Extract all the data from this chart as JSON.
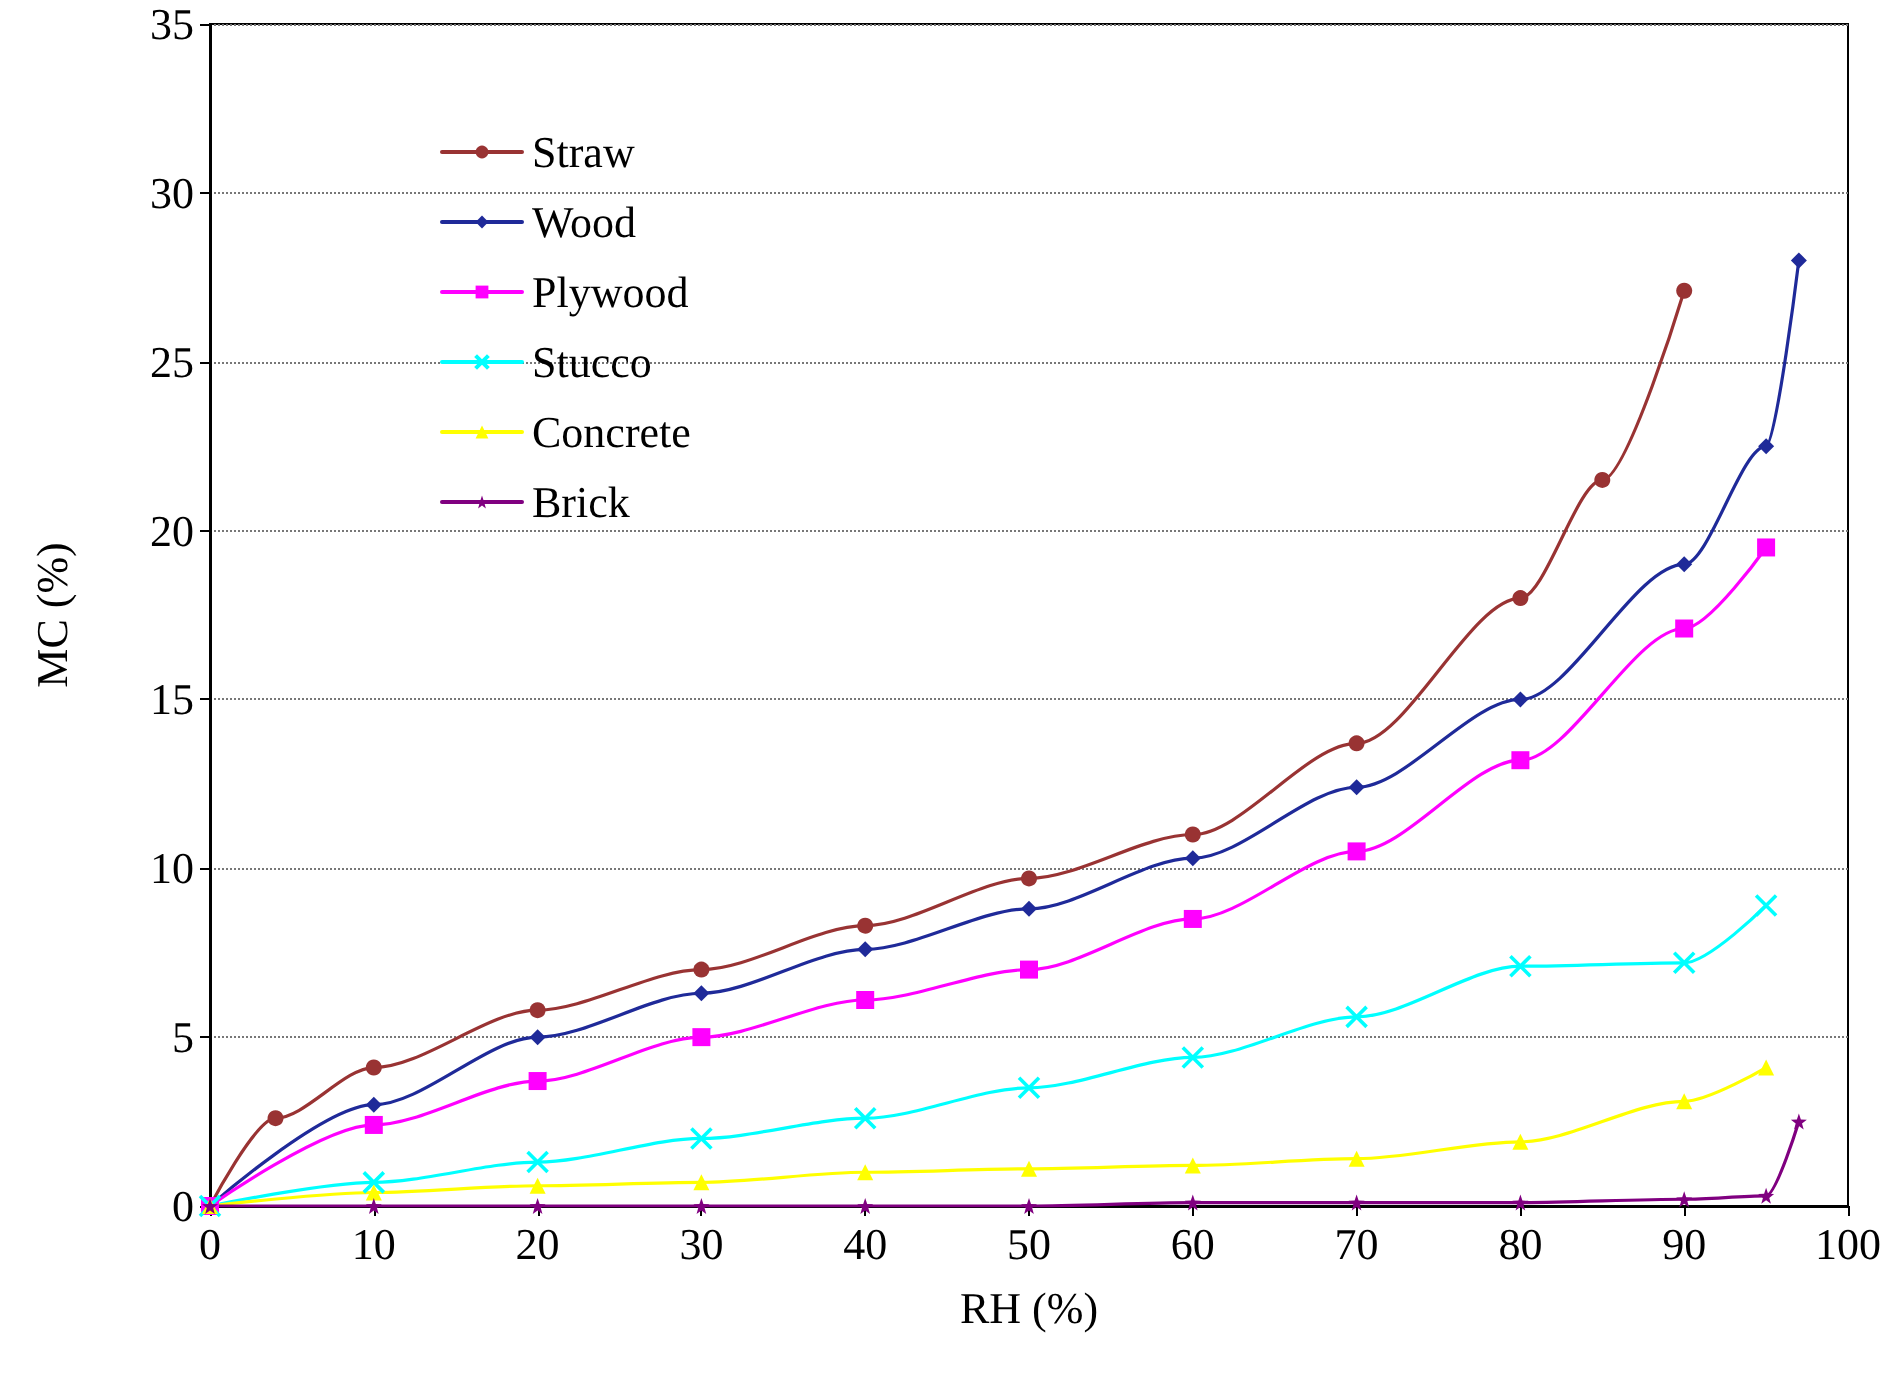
{
  "chart_data": {
    "type": "line",
    "xlabel": "RH (%)",
    "ylabel": "MC (%)",
    "xlim": [
      0,
      100
    ],
    "xticks": [
      0,
      10,
      20,
      30,
      40,
      50,
      60,
      70,
      80,
      90,
      100
    ],
    "ylim": [
      0,
      35
    ],
    "yticks": [
      0,
      5,
      10,
      15,
      20,
      25,
      30,
      35
    ],
    "grid": "y",
    "legend": "top left",
    "line_style": "solid",
    "series": [
      {
        "name": "Straw",
        "color": "#993333",
        "marker": "circle",
        "x": [
          0,
          4,
          10,
          20,
          30,
          40,
          50,
          60,
          70,
          80,
          85,
          90
        ],
        "values": [
          0,
          2.6,
          4.1,
          5.8,
          7.0,
          8.3,
          9.7,
          11.0,
          13.7,
          18.0,
          21.5,
          27.1
        ]
      },
      {
        "name": "Wood",
        "color": "#1f2a99",
        "marker": "diamond",
        "x": [
          0,
          10,
          20,
          30,
          40,
          50,
          60,
          70,
          80,
          90,
          95,
          97
        ],
        "values": [
          0,
          3.0,
          5.0,
          6.3,
          7.6,
          8.8,
          10.3,
          12.4,
          15.0,
          19.0,
          22.5,
          28.0
        ]
      },
      {
        "name": "Plywood",
        "color": "#ff00ff",
        "marker": "square",
        "x": [
          0,
          10,
          20,
          30,
          40,
          50,
          60,
          70,
          80,
          90,
          95
        ],
        "values": [
          0,
          2.4,
          3.7,
          5.0,
          6.1,
          7.0,
          8.5,
          10.5,
          13.2,
          17.1,
          19.5
        ]
      },
      {
        "name": "Stucco",
        "color": "#00ffff",
        "marker": "cross",
        "x": [
          0,
          10,
          20,
          30,
          40,
          50,
          60,
          70,
          80,
          90,
          95
        ],
        "values": [
          0,
          0.7,
          1.3,
          2.0,
          2.6,
          3.5,
          4.4,
          5.6,
          7.1,
          7.2,
          8.9
        ]
      },
      {
        "name": "Concrete",
        "color": "#ffff00",
        "marker": "triangle",
        "x": [
          0,
          10,
          20,
          30,
          40,
          50,
          60,
          70,
          80,
          90,
          95
        ],
        "values": [
          0,
          0.4,
          0.6,
          0.7,
          1.0,
          1.1,
          1.2,
          1.4,
          1.9,
          3.1,
          4.1
        ]
      },
      {
        "name": "Brick",
        "color": "#800080",
        "marker": "star",
        "x": [
          0,
          10,
          20,
          30,
          40,
          50,
          60,
          70,
          80,
          90,
          95,
          97
        ],
        "values": [
          0,
          0,
          0,
          0,
          0,
          0,
          0.1,
          0.1,
          0.1,
          0.2,
          0.3,
          2.5
        ]
      }
    ]
  }
}
